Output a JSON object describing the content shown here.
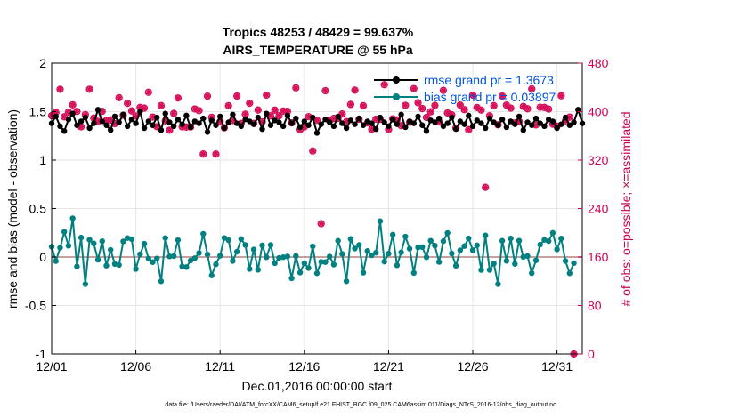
{
  "chart_data": {
    "type": "line",
    "title": "Tropics 48253 / 48429 = 99.637%",
    "subtitle": "AIRS_TEMPERATURE @ 55 hPa",
    "xlabel": "Dec.01,2016 00:00:00 start",
    "ylabel": "rmse and bias (model - observation)",
    "y2label": "# of obs: o=possible; ×=assimilated",
    "footer": "data file: /Users/raeder/DAI/ATM_forcXX/CAM6_setup/f.e21.FHIST_BGC.f09_025.CAM6assim.011/Diags_NTrS_2016-12/obs_diag_output.nc",
    "xlim": [
      0,
      31.5
    ],
    "ylim": [
      -1,
      2
    ],
    "y2lim": [
      0,
      480
    ],
    "x_ticks": [
      0,
      5,
      10,
      15,
      20,
      25,
      30
    ],
    "x_tick_labels": [
      "12/01",
      "12/06",
      "12/11",
      "12/16",
      "12/21",
      "12/26",
      "12/31"
    ],
    "y_ticks": [
      -1,
      -0.5,
      0,
      0.5,
      1,
      1.5,
      2
    ],
    "y_tick_labels": [
      "-1",
      "-0.5",
      "0",
      "0.5",
      "1",
      "1.5",
      "2"
    ],
    "y2_ticks": [
      0,
      80,
      160,
      240,
      320,
      400,
      480
    ],
    "y2_tick_labels": [
      "0",
      "80",
      "160",
      "240",
      "320",
      "400",
      "480"
    ],
    "grid": true,
    "legend_position": "top-right",
    "time_step_days": 0.25,
    "series": [
      {
        "name": "rmse grand pr = 1.3673",
        "axis": "left",
        "color": "#000000",
        "values": [
          1.38,
          1.45,
          1.35,
          1.3,
          1.42,
          1.48,
          1.36,
          1.4,
          1.44,
          1.33,
          1.38,
          1.52,
          1.4,
          1.36,
          1.31,
          1.45,
          1.39,
          1.47,
          1.35,
          1.42,
          1.38,
          1.5,
          1.33,
          1.4,
          1.36,
          1.44,
          1.31,
          1.48,
          1.39,
          1.35,
          1.42,
          1.37,
          1.46,
          1.34,
          1.4,
          1.38,
          1.43,
          1.29,
          1.41,
          1.36,
          1.45,
          1.33,
          1.39,
          1.47,
          1.38,
          1.35,
          1.42,
          1.4,
          1.37,
          1.44,
          1.32,
          1.48,
          1.36,
          1.41,
          1.39,
          1.35,
          1.46,
          1.38,
          1.43,
          1.34,
          1.4,
          1.36,
          1.44,
          1.28,
          1.37,
          1.42,
          1.39,
          1.35,
          1.45,
          1.38,
          1.33,
          1.41,
          1.37,
          1.43,
          1.36,
          1.4,
          1.38,
          1.32,
          1.44,
          1.39,
          1.35,
          1.42,
          1.37,
          1.47,
          1.34,
          1.4,
          1.38,
          1.45,
          1.36,
          1.3,
          1.41,
          1.39,
          1.43,
          1.35,
          1.38,
          1.44,
          1.32,
          1.4,
          1.37,
          1.46,
          1.35,
          1.41,
          1.38,
          1.33,
          1.43,
          1.39,
          1.36,
          1.42,
          1.34,
          1.4,
          1.37,
          1.45,
          1.31,
          1.39,
          1.36,
          1.43,
          1.38,
          1.35,
          1.42,
          1.4,
          1.33,
          1.37,
          1.44,
          1.36,
          1.39,
          1.52,
          1.38
        ],
        "sparse_note": "series drawn with one value per 6 hours"
      }
    ]
  }
}
